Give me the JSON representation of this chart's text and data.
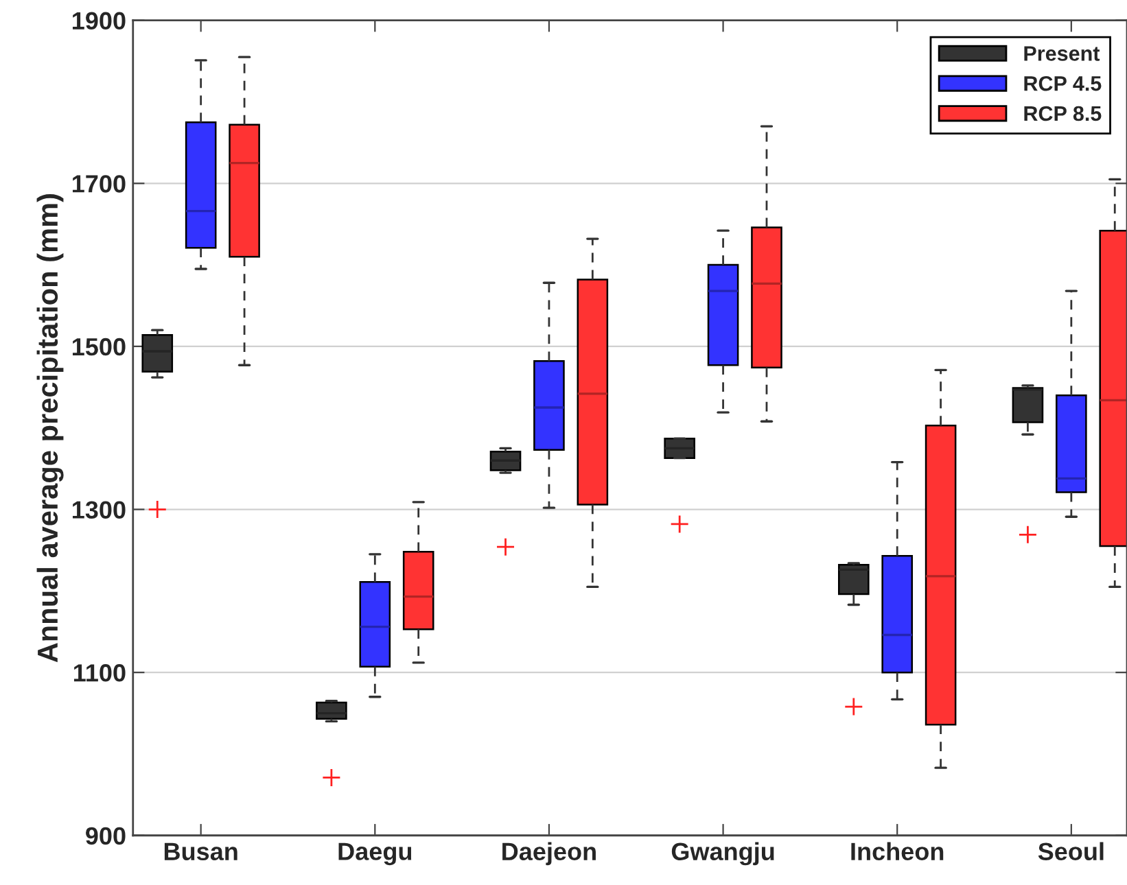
{
  "chart_data": {
    "type": "box",
    "ylabel": "Annual average precipitation (mm)",
    "categories": [
      "Busan",
      "Daegu",
      "Daejeon",
      "Gwangju",
      "Incheon",
      "Seoul"
    ],
    "ylim": [
      900,
      1900
    ],
    "yticks": [
      900,
      1100,
      1300,
      1500,
      1700,
      1900
    ],
    "grid": "y",
    "legend": "top right",
    "series": [
      {
        "name": "Present",
        "color": "#333333",
        "boxes": [
          {
            "low": 1462,
            "q1": 1469,
            "median": 1494,
            "q3": 1514,
            "high": 1520,
            "outliers": [
              1300
            ]
          },
          {
            "low": 1040,
            "q1": 1043,
            "median": 1050,
            "q3": 1063,
            "high": 1065,
            "outliers": [
              971
            ]
          },
          {
            "low": 1345,
            "q1": 1348,
            "median": 1360,
            "q3": 1371,
            "high": 1375,
            "outliers": [
              1254
            ]
          },
          {
            "low": 1363,
            "q1": 1363,
            "median": 1375,
            "q3": 1387,
            "high": 1387,
            "outliers": [
              1282
            ]
          },
          {
            "low": 1183,
            "q1": 1196,
            "median": 1226,
            "q3": 1232,
            "high": 1234,
            "outliers": [
              1058
            ]
          },
          {
            "low": 1392,
            "q1": 1407,
            "median": 1447,
            "q3": 1449,
            "high": 1452,
            "outliers": [
              1269
            ]
          }
        ]
      },
      {
        "name": "RCP 4.5",
        "color": "#3333ff",
        "boxes": [
          {
            "low": 1595,
            "q1": 1621,
            "median": 1666,
            "q3": 1775,
            "high": 1851
          },
          {
            "low": 1070,
            "q1": 1107,
            "median": 1156,
            "q3": 1211,
            "high": 1245
          },
          {
            "low": 1302,
            "q1": 1373,
            "median": 1425,
            "q3": 1482,
            "high": 1578
          },
          {
            "low": 1419,
            "q1": 1477,
            "median": 1568,
            "q3": 1600,
            "high": 1642
          },
          {
            "low": 1067,
            "q1": 1100,
            "median": 1146,
            "q3": 1243,
            "high": 1358
          },
          {
            "low": 1291,
            "q1": 1321,
            "median": 1338,
            "q3": 1440,
            "high": 1568
          }
        ]
      },
      {
        "name": "RCP 8.5",
        "color": "#ff3333",
        "boxes": [
          {
            "low": 1477,
            "q1": 1610,
            "median": 1725,
            "q3": 1772,
            "high": 1855
          },
          {
            "low": 1112,
            "q1": 1153,
            "median": 1193,
            "q3": 1248,
            "high": 1309
          },
          {
            "low": 1205,
            "q1": 1306,
            "median": 1442,
            "q3": 1582,
            "high": 1632
          },
          {
            "low": 1408,
            "q1": 1474,
            "median": 1577,
            "q3": 1646,
            "high": 1770
          },
          {
            "low": 983,
            "q1": 1036,
            "median": 1218,
            "q3": 1403,
            "high": 1471
          },
          {
            "low": 1205,
            "q1": 1255,
            "median": 1434,
            "q3": 1642,
            "high": 1705
          }
        ]
      }
    ]
  }
}
